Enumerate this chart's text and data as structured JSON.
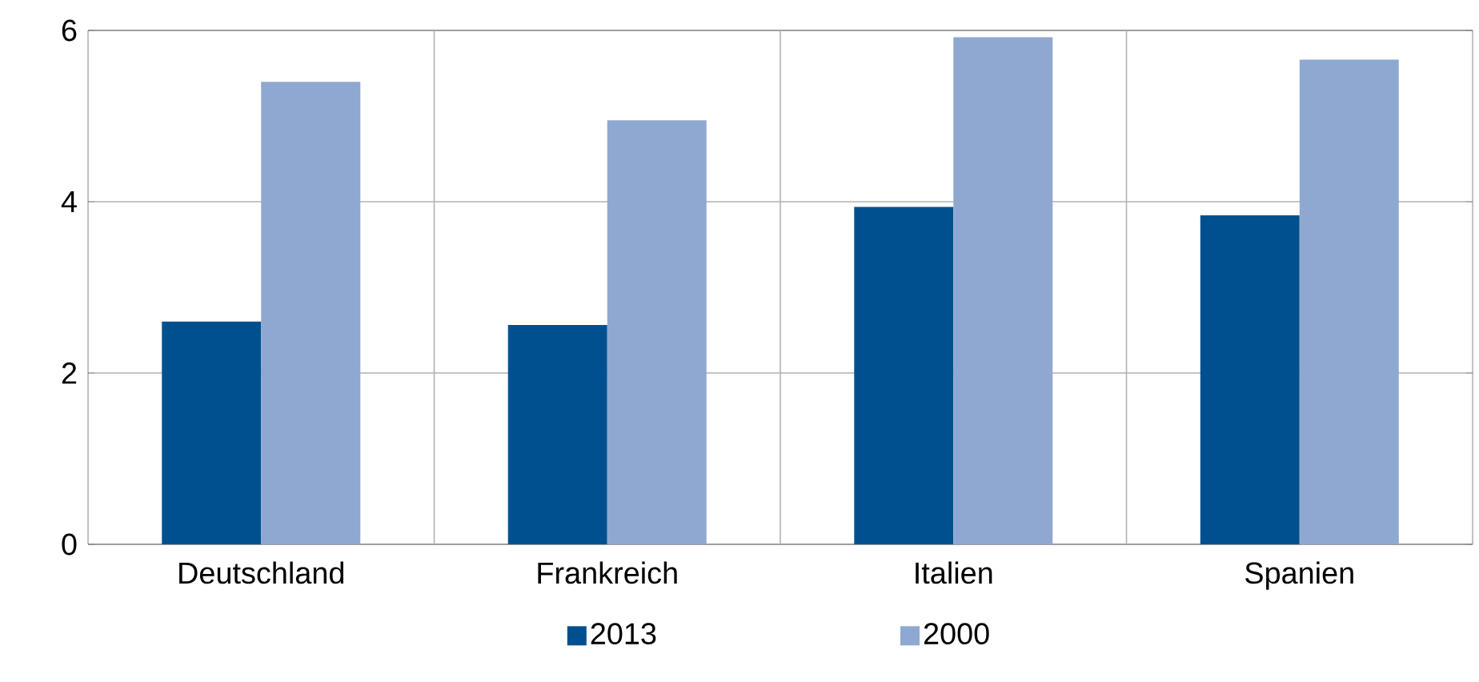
{
  "chart_data": {
    "type": "bar",
    "categories": [
      "Deutschland",
      "Frankreich",
      "Italien",
      "Spanien"
    ],
    "series": [
      {
        "name": "2013",
        "color": "#00508f",
        "values": [
          2.6,
          2.56,
          3.94,
          3.84
        ]
      },
      {
        "name": "2000",
        "color": "#8fa8d2",
        "values": [
          5.4,
          4.95,
          5.92,
          5.66
        ]
      }
    ],
    "ylim": [
      0,
      6
    ],
    "yticks": [
      0,
      2,
      4,
      6
    ],
    "grid": true,
    "legend": "bottom"
  }
}
